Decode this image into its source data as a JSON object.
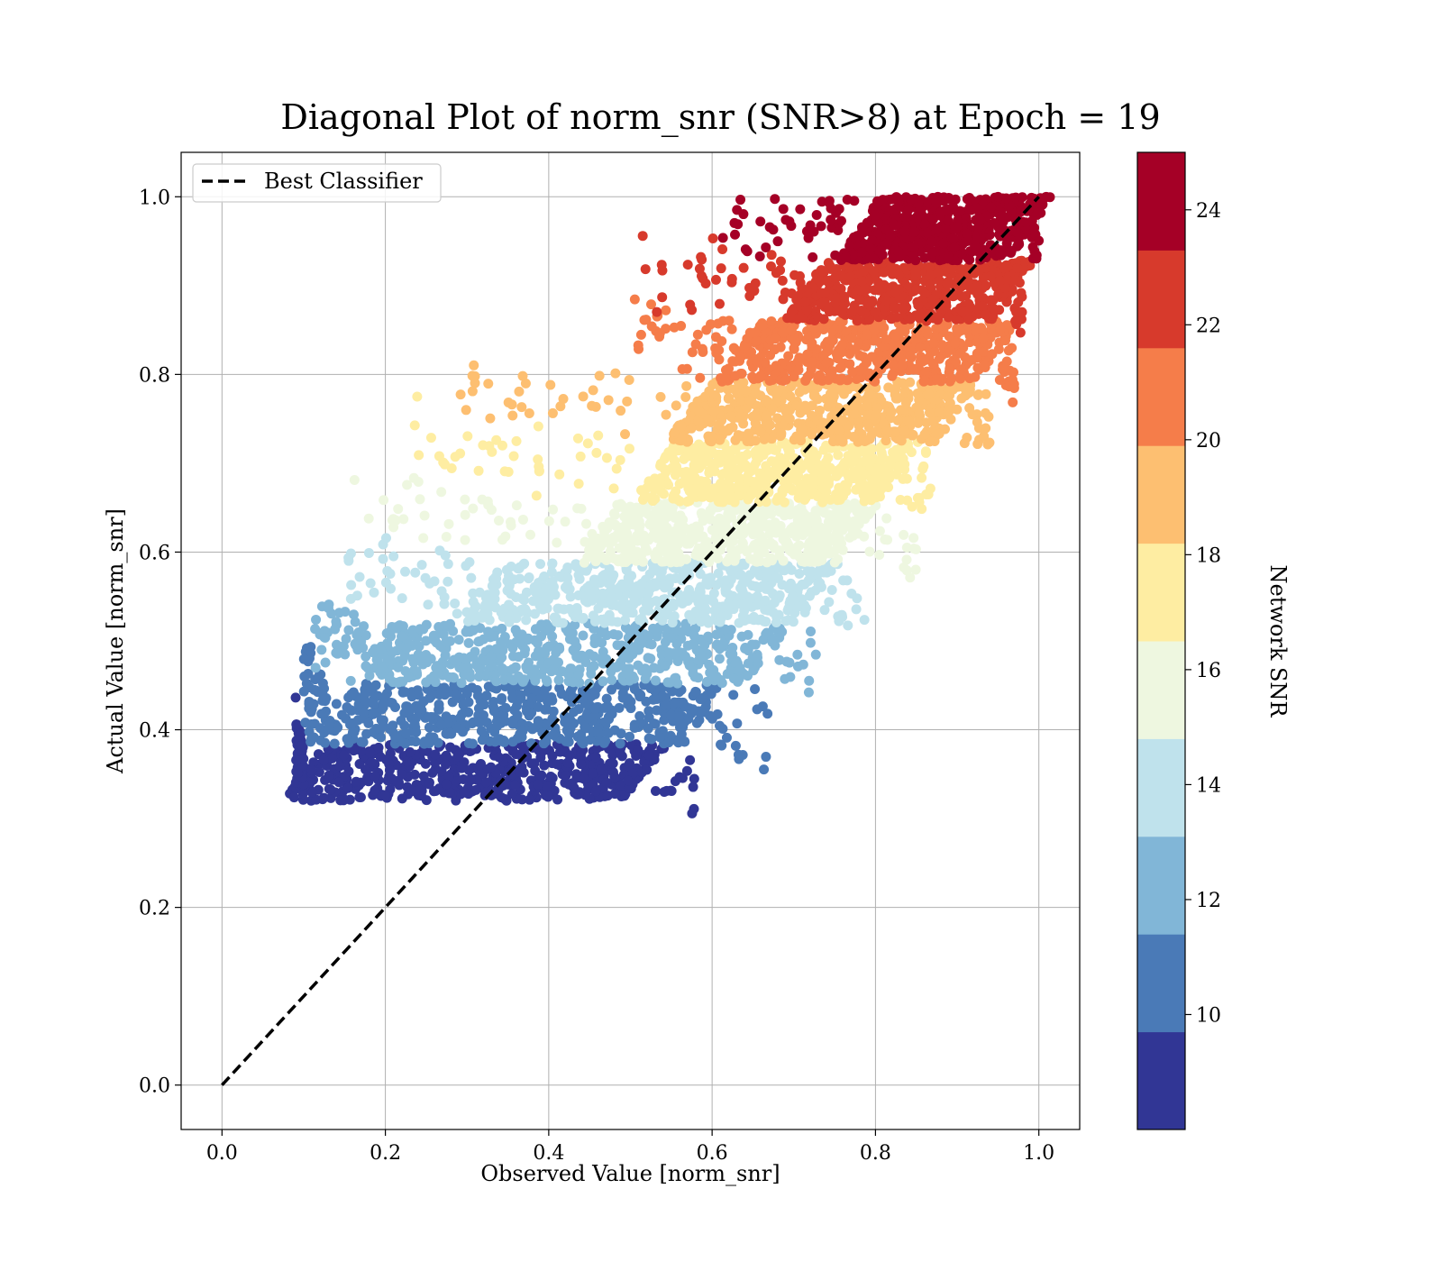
{
  "chart_data": {
    "type": "scatter",
    "title": "Diagonal Plot of norm_snr (SNR>8) at Epoch = 19",
    "xlabel": "Observed Value [norm_snr]",
    "ylabel": "Actual Value [norm_snr]",
    "xlim": [
      -0.05,
      1.05
    ],
    "ylim": [
      -0.05,
      1.05
    ],
    "xticks": [
      0.0,
      0.2,
      0.4,
      0.6,
      0.8,
      1.0
    ],
    "yticks": [
      0.0,
      0.2,
      0.4,
      0.6,
      0.8,
      1.0
    ],
    "xtick_labels": [
      "0.0",
      "0.2",
      "0.4",
      "0.6",
      "0.8",
      "1.0"
    ],
    "ytick_labels": [
      "0.0",
      "0.2",
      "0.4",
      "0.6",
      "0.8",
      "1.0"
    ],
    "grid": true,
    "legend": {
      "position": "top-left",
      "entries": [
        "Best Classifier"
      ]
    },
    "reference_line": {
      "name": "Best Classifier",
      "style": "dashed",
      "color": "#000000",
      "x": [
        0,
        1
      ],
      "y": [
        0,
        1
      ]
    },
    "colorbar": {
      "label": "Network SNR",
      "range": [
        8,
        25
      ],
      "ticks": [
        10,
        12,
        14,
        16,
        18,
        20,
        22,
        24
      ],
      "tick_labels": [
        "10",
        "12",
        "14",
        "16",
        "18",
        "20",
        "22",
        "24"
      ],
      "levels": [
        8,
        9.7,
        11.4,
        13.1,
        14.8,
        16.5,
        18.2,
        19.9,
        21.6,
        23.3,
        25
      ],
      "colors": [
        "#313695",
        "#4a7ab7",
        "#81b6d7",
        "#bfe2ec",
        "#eef7e0",
        "#feeda2",
        "#fdbf71",
        "#f57d4a",
        "#d73a2c",
        "#a50026"
      ]
    },
    "bands": [
      {
        "snr_range": [
          8.0,
          9.7
        ],
        "y_range": [
          0.32,
          0.384
        ],
        "x_core": [
          0.1,
          0.52
        ],
        "x_extent": [
          0.09,
          0.58
        ]
      },
      {
        "snr_range": [
          9.7,
          11.4
        ],
        "y_range": [
          0.384,
          0.452
        ],
        "x_core": [
          0.13,
          0.59
        ],
        "x_extent": [
          0.1,
          0.67
        ]
      },
      {
        "snr_range": [
          11.4,
          13.1
        ],
        "y_range": [
          0.452,
          0.52
        ],
        "x_core": [
          0.18,
          0.67
        ],
        "x_extent": [
          0.11,
          0.73
        ]
      },
      {
        "snr_range": [
          13.1,
          14.8
        ],
        "y_range": [
          0.52,
          0.588
        ],
        "x_core": [
          0.32,
          0.73
        ],
        "x_extent": [
          0.15,
          0.79
        ]
      },
      {
        "snr_range": [
          14.8,
          16.5
        ],
        "y_range": [
          0.588,
          0.656
        ],
        "x_core": [
          0.46,
          0.78
        ],
        "x_extent": [
          0.15,
          0.86
        ]
      },
      {
        "snr_range": [
          16.5,
          18.2
        ],
        "y_range": [
          0.656,
          0.724
        ],
        "x_core": [
          0.53,
          0.83
        ],
        "x_extent": [
          0.22,
          0.87
        ]
      },
      {
        "snr_range": [
          18.2,
          19.9
        ],
        "y_range": [
          0.724,
          0.792
        ],
        "x_core": [
          0.57,
          0.9
        ],
        "x_extent": [
          0.29,
          0.94
        ]
      },
      {
        "snr_range": [
          19.9,
          21.6
        ],
        "y_range": [
          0.792,
          0.86
        ],
        "x_core": [
          0.63,
          0.95
        ],
        "x_extent": [
          0.5,
          0.97
        ]
      },
      {
        "snr_range": [
          21.6,
          23.3
        ],
        "y_range": [
          0.86,
          0.928
        ],
        "x_core": [
          0.71,
          0.97
        ],
        "x_extent": [
          0.5,
          0.98
        ]
      },
      {
        "snr_range": [
          23.3,
          25.0
        ],
        "y_range": [
          0.928,
          1.0
        ],
        "x_core": [
          0.78,
          0.99
        ],
        "x_extent": [
          0.61,
          0.995
        ]
      }
    ]
  }
}
